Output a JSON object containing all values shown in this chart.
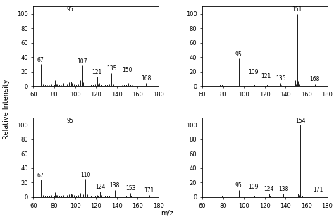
{
  "subplots": [
    {
      "peaks": [
        {
          "mz": 61,
          "rel": 2
        },
        {
          "mz": 63,
          "rel": 1.5
        },
        {
          "mz": 65,
          "rel": 2.5
        },
        {
          "mz": 67,
          "rel": 30
        },
        {
          "mz": 68,
          "rel": 4
        },
        {
          "mz": 69,
          "rel": 3
        },
        {
          "mz": 71,
          "rel": 2
        },
        {
          "mz": 73,
          "rel": 1.5
        },
        {
          "mz": 75,
          "rel": 1.5
        },
        {
          "mz": 77,
          "rel": 3
        },
        {
          "mz": 79,
          "rel": 5
        },
        {
          "mz": 80,
          "rel": 2
        },
        {
          "mz": 81,
          "rel": 8
        },
        {
          "mz": 82,
          "rel": 3
        },
        {
          "mz": 83,
          "rel": 3
        },
        {
          "mz": 85,
          "rel": 2
        },
        {
          "mz": 87,
          "rel": 1.5
        },
        {
          "mz": 89,
          "rel": 4
        },
        {
          "mz": 91,
          "rel": 8
        },
        {
          "mz": 92,
          "rel": 3
        },
        {
          "mz": 93,
          "rel": 15
        },
        {
          "mz": 94,
          "rel": 5
        },
        {
          "mz": 95,
          "rel": 100
        },
        {
          "mz": 96,
          "rel": 6
        },
        {
          "mz": 97,
          "rel": 4
        },
        {
          "mz": 99,
          "rel": 3
        },
        {
          "mz": 101,
          "rel": 2
        },
        {
          "mz": 103,
          "rel": 3
        },
        {
          "mz": 105,
          "rel": 8
        },
        {
          "mz": 107,
          "rel": 28
        },
        {
          "mz": 108,
          "rel": 5
        },
        {
          "mz": 109,
          "rel": 8
        },
        {
          "mz": 111,
          "rel": 3
        },
        {
          "mz": 113,
          "rel": 2
        },
        {
          "mz": 115,
          "rel": 2
        },
        {
          "mz": 117,
          "rel": 2
        },
        {
          "mz": 119,
          "rel": 3
        },
        {
          "mz": 121,
          "rel": 13
        },
        {
          "mz": 122,
          "rel": 3
        },
        {
          "mz": 123,
          "rel": 4
        },
        {
          "mz": 125,
          "rel": 2
        },
        {
          "mz": 127,
          "rel": 2
        },
        {
          "mz": 129,
          "rel": 2
        },
        {
          "mz": 131,
          "rel": 2
        },
        {
          "mz": 133,
          "rel": 3
        },
        {
          "mz": 135,
          "rel": 18
        },
        {
          "mz": 136,
          "rel": 3
        },
        {
          "mz": 137,
          "rel": 3
        },
        {
          "mz": 139,
          "rel": 2
        },
        {
          "mz": 141,
          "rel": 1.5
        },
        {
          "mz": 143,
          "rel": 1.5
        },
        {
          "mz": 145,
          "rel": 1.5
        },
        {
          "mz": 147,
          "rel": 2
        },
        {
          "mz": 149,
          "rel": 2
        },
        {
          "mz": 150,
          "rel": 16
        },
        {
          "mz": 151,
          "rel": 4
        },
        {
          "mz": 153,
          "rel": 2
        },
        {
          "mz": 155,
          "rel": 1.5
        },
        {
          "mz": 157,
          "rel": 1.5
        },
        {
          "mz": 168,
          "rel": 4
        }
      ],
      "labeled": {
        "95": 100,
        "67": 30,
        "107": 28,
        "121": 13,
        "135": 18,
        "150": 16,
        "168": 4
      },
      "xlim": [
        60,
        180
      ],
      "ylim": [
        0,
        110
      ]
    },
    {
      "peaks": [
        {
          "mz": 77,
          "rel": 2
        },
        {
          "mz": 79,
          "rel": 2
        },
        {
          "mz": 95,
          "rel": 38
        },
        {
          "mz": 96,
          "rel": 3
        },
        {
          "mz": 109,
          "rel": 13
        },
        {
          "mz": 110,
          "rel": 2
        },
        {
          "mz": 121,
          "rel": 7
        },
        {
          "mz": 122,
          "rel": 2
        },
        {
          "mz": 135,
          "rel": 4
        },
        {
          "mz": 136,
          "rel": 1.5
        },
        {
          "mz": 149,
          "rel": 8
        },
        {
          "mz": 150,
          "rel": 3
        },
        {
          "mz": 151,
          "rel": 100
        },
        {
          "mz": 152,
          "rel": 7
        },
        {
          "mz": 153,
          "rel": 3
        },
        {
          "mz": 168,
          "rel": 3
        }
      ],
      "labeled": {
        "151": 100,
        "95": 38,
        "109": 13,
        "121": 7,
        "135": 4,
        "168": 3
      },
      "xlim": [
        60,
        180
      ],
      "ylim": [
        0,
        110
      ]
    },
    {
      "peaks": [
        {
          "mz": 61,
          "rel": 2
        },
        {
          "mz": 63,
          "rel": 1.5
        },
        {
          "mz": 65,
          "rel": 2.5
        },
        {
          "mz": 67,
          "rel": 24
        },
        {
          "mz": 68,
          "rel": 4
        },
        {
          "mz": 69,
          "rel": 3
        },
        {
          "mz": 71,
          "rel": 2
        },
        {
          "mz": 73,
          "rel": 1.5
        },
        {
          "mz": 75,
          "rel": 1.5
        },
        {
          "mz": 77,
          "rel": 3
        },
        {
          "mz": 79,
          "rel": 5
        },
        {
          "mz": 80,
          "rel": 2
        },
        {
          "mz": 81,
          "rel": 7
        },
        {
          "mz": 82,
          "rel": 3
        },
        {
          "mz": 83,
          "rel": 3
        },
        {
          "mz": 85,
          "rel": 2
        },
        {
          "mz": 87,
          "rel": 1.5
        },
        {
          "mz": 89,
          "rel": 3
        },
        {
          "mz": 91,
          "rel": 7
        },
        {
          "mz": 92,
          "rel": 3
        },
        {
          "mz": 93,
          "rel": 12
        },
        {
          "mz": 94,
          "rel": 4
        },
        {
          "mz": 95,
          "rel": 100
        },
        {
          "mz": 96,
          "rel": 5
        },
        {
          "mz": 97,
          "rel": 4
        },
        {
          "mz": 99,
          "rel": 3
        },
        {
          "mz": 101,
          "rel": 2
        },
        {
          "mz": 103,
          "rel": 3
        },
        {
          "mz": 105,
          "rel": 6
        },
        {
          "mz": 108,
          "rel": 4
        },
        {
          "mz": 109,
          "rel": 5
        },
        {
          "mz": 110,
          "rel": 25
        },
        {
          "mz": 111,
          "rel": 20
        },
        {
          "mz": 112,
          "rel": 4
        },
        {
          "mz": 113,
          "rel": 3
        },
        {
          "mz": 115,
          "rel": 2
        },
        {
          "mz": 119,
          "rel": 2
        },
        {
          "mz": 121,
          "rel": 3
        },
        {
          "mz": 122,
          "rel": 2
        },
        {
          "mz": 124,
          "rel": 8
        },
        {
          "mz": 125,
          "rel": 3
        },
        {
          "mz": 127,
          "rel": 2
        },
        {
          "mz": 129,
          "rel": 2
        },
        {
          "mz": 131,
          "rel": 2
        },
        {
          "mz": 133,
          "rel": 2
        },
        {
          "mz": 136,
          "rel": 2
        },
        {
          "mz": 138,
          "rel": 10
        },
        {
          "mz": 139,
          "rel": 3
        },
        {
          "mz": 141,
          "rel": 2
        },
        {
          "mz": 149,
          "rel": 2
        },
        {
          "mz": 153,
          "rel": 6
        },
        {
          "mz": 154,
          "rel": 2
        },
        {
          "mz": 157,
          "rel": 1.5
        },
        {
          "mz": 171,
          "rel": 3
        }
      ],
      "labeled": {
        "95": 100,
        "67": 24,
        "110": 25,
        "124": 8,
        "138": 10,
        "153": 6,
        "171": 3
      },
      "xlim": [
        60,
        180
      ],
      "ylim": [
        0,
        110
      ]
    },
    {
      "peaks": [
        {
          "mz": 79,
          "rel": 2
        },
        {
          "mz": 95,
          "rel": 10
        },
        {
          "mz": 96,
          "rel": 2
        },
        {
          "mz": 109,
          "rel": 8
        },
        {
          "mz": 110,
          "rel": 2
        },
        {
          "mz": 124,
          "rel": 5
        },
        {
          "mz": 125,
          "rel": 2
        },
        {
          "mz": 138,
          "rel": 5
        },
        {
          "mz": 139,
          "rel": 2
        },
        {
          "mz": 152,
          "rel": 5
        },
        {
          "mz": 153,
          "rel": 3
        },
        {
          "mz": 154,
          "rel": 100
        },
        {
          "mz": 155,
          "rel": 7
        },
        {
          "mz": 156,
          "rel": 2
        },
        {
          "mz": 171,
          "rel": 4
        }
      ],
      "labeled": {
        "154": 100,
        "95": 10,
        "109": 8,
        "124": 5,
        "138": 5,
        "171": 4
      },
      "xlim": [
        60,
        180
      ],
      "ylim": [
        0,
        110
      ]
    }
  ],
  "ylabel": "Relative Intensity",
  "xlabel": "m/z",
  "bg_color": "#ffffff",
  "bar_color": "#1a1a1a",
  "tick_fontsize": 6,
  "label_fontsize": 5.5,
  "xticks": [
    60,
    80,
    100,
    120,
    140,
    160,
    180
  ],
  "yticks": [
    0,
    20,
    40,
    60,
    80,
    100
  ]
}
